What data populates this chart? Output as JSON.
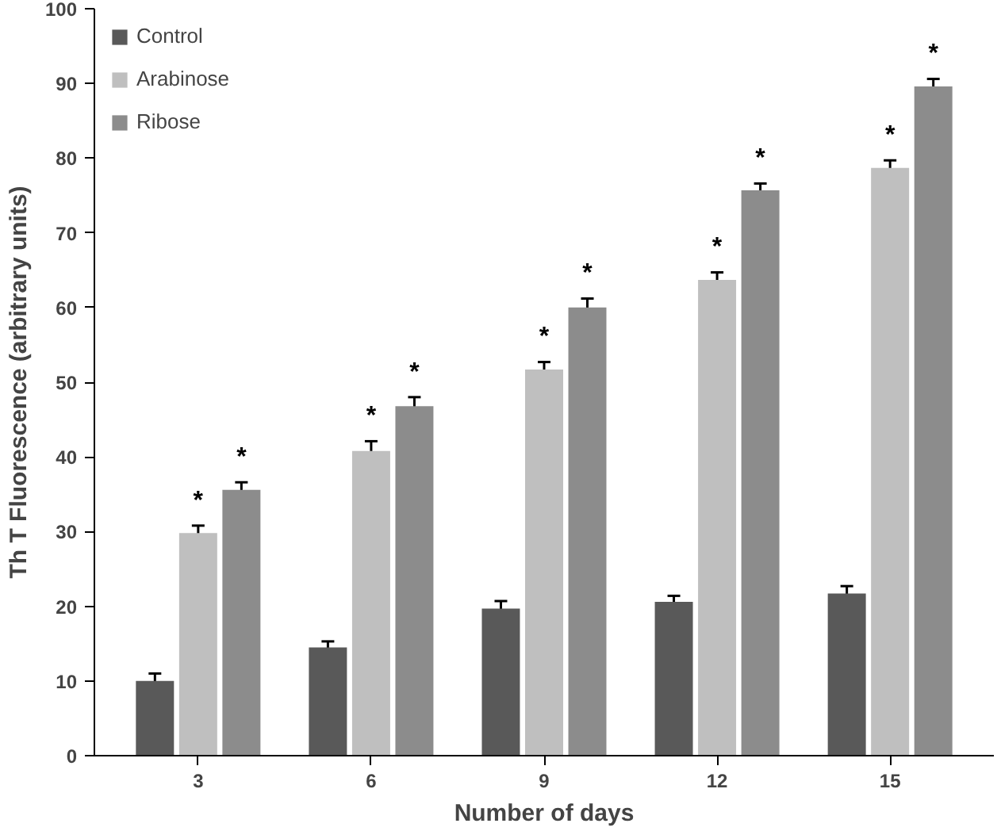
{
  "chart_data": {
    "type": "bar",
    "xlabel": "Number of days",
    "ylabel": "Th T Fluorescence (arbitrary units)",
    "categories": [
      "3",
      "6",
      "9",
      "12",
      "15"
    ],
    "series": [
      {
        "name": "Control",
        "color": "#595959",
        "values": [
          10,
          14.5,
          19.7,
          20.6,
          21.7
        ],
        "errors": [
          1,
          0.8,
          1,
          0.8,
          1
        ]
      },
      {
        "name": "Arabinose",
        "color": "#bfbfbf",
        "values": [
          29.8,
          40.8,
          51.7,
          63.7,
          78.7
        ],
        "errors": [
          1,
          1.3,
          1,
          1,
          1
        ],
        "value_labels": [
          "*",
          "*",
          "*",
          "*",
          "*"
        ]
      },
      {
        "name": "Ribose",
        "color": "#8c8c8c",
        "values": [
          35.6,
          46.8,
          60.0,
          75.7,
          89.6
        ],
        "errors": [
          1,
          1.2,
          1.2,
          0.9,
          1
        ],
        "value_labels": [
          "*",
          "*",
          "*",
          "*",
          "*"
        ]
      }
    ],
    "ylim": [
      0,
      100
    ],
    "yticks": [
      0,
      10,
      20,
      30,
      40,
      50,
      60,
      70,
      80,
      90,
      100
    ],
    "grid": false,
    "legend": "top left"
  }
}
